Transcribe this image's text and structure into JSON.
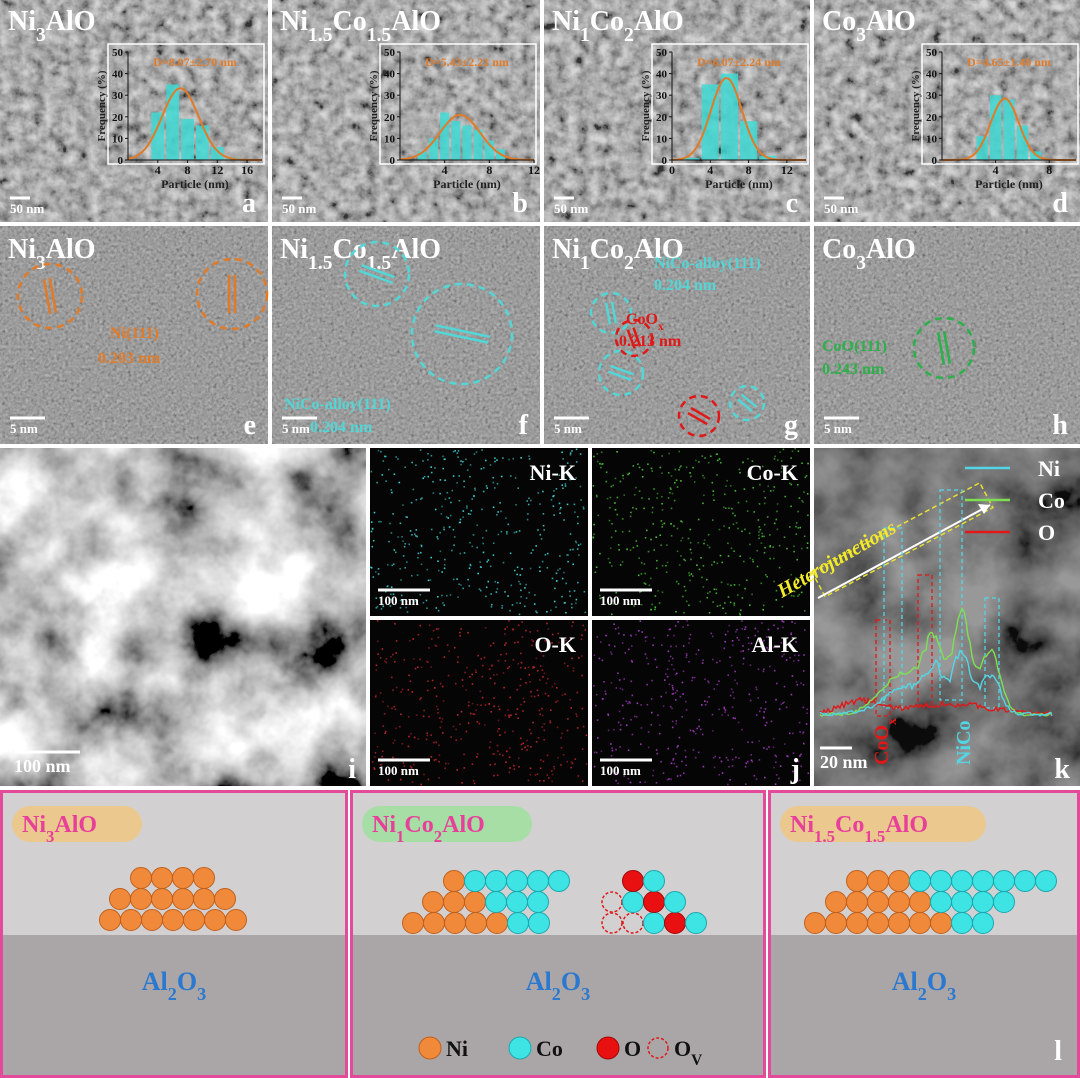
{
  "histograms": [
    {
      "title": "Ni3AlO",
      "fit": "D=8.07±2.70 nm",
      "y_label": "Frequency (%)",
      "x_label": "Particle (nm)",
      "bins": [
        3,
        5,
        7,
        9,
        11,
        13,
        15
      ],
      "counts": [
        22,
        35,
        19,
        16,
        6,
        1
      ],
      "xlim": [
        0,
        18
      ],
      "xticks": [
        4,
        8,
        12,
        16
      ],
      "ylim": [
        0,
        50
      ],
      "yticks": [
        0,
        10,
        20,
        30,
        40,
        50
      ],
      "scale_bar": "50 nm",
      "letter": "a"
    },
    {
      "title": "Ni1.5Co1.5AlO",
      "fit": "D=5.43±2.21 nm",
      "y_label": "Frequency (%)",
      "x_label": "Particle (nm)",
      "bins": [
        1.5,
        2.5,
        3.5,
        4.5,
        5.5,
        6.5,
        7.5,
        8.5,
        9.5
      ],
      "counts": [
        4,
        10,
        22,
        18,
        16,
        14,
        9,
        5
      ],
      "xlim": [
        0,
        12
      ],
      "xticks": [
        4,
        8,
        12
      ],
      "ylim": [
        0,
        50
      ],
      "yticks": [
        0,
        10,
        20,
        30,
        40,
        50
      ],
      "scale_bar": "50 nm",
      "letter": "b"
    },
    {
      "title": "Ni1Co2AlO",
      "fit": "D=6.07±2.24 nm",
      "y_label": "Frequency (%)",
      "x_label": "Particle (nm)",
      "bins": [
        1,
        3,
        5,
        7,
        9,
        11
      ],
      "counts": [
        1,
        35,
        40,
        18,
        2
      ],
      "xlim": [
        0,
        14
      ],
      "xticks": [
        0,
        4,
        8,
        12
      ],
      "ylim": [
        0,
        50
      ],
      "yticks": [
        0,
        10,
        20,
        30,
        40,
        50
      ],
      "scale_bar": "50 nm",
      "letter": "c"
    },
    {
      "title": "Co3AlO",
      "fit": "D=4.65±1.40 nm",
      "y_label": "Frequency (%)",
      "x_label": "Particle (nm)",
      "bins": [
        2.5,
        3.5,
        4.5,
        5.5,
        6.5,
        7.5
      ],
      "counts": [
        11,
        30,
        28,
        16,
        4
      ],
      "xlim": [
        0,
        10
      ],
      "xticks": [
        4,
        8
      ],
      "ylim": [
        0,
        50
      ],
      "yticks": [
        0,
        10,
        20,
        30,
        40,
        50
      ],
      "scale_bar": "50 nm",
      "letter": "d"
    }
  ],
  "hrtem": [
    {
      "title": "Ni3AlO",
      "annotations": [
        {
          "text": "Ni(111)",
          "color": "#e07b2a"
        },
        {
          "text": "0.203 nm",
          "color": "#e07b2a"
        }
      ],
      "scale_bar": "5 nm",
      "letter": "e"
    },
    {
      "title": "Ni1.5Co1.5AlO",
      "annotations": [
        {
          "text": "NiCo-alloy(111)",
          "color": "#52d6d6"
        },
        {
          "text": "0.204 nm",
          "color": "#52d6d6"
        }
      ],
      "scale_bar": "5 nm",
      "letter": "f"
    },
    {
      "title": "Ni1Co2AlO",
      "annotations": [
        {
          "text": "NiCo-alloy(111)",
          "color": "#52d6d6"
        },
        {
          "text": "0.204 nm",
          "color": "#52d6d6"
        },
        {
          "text": "CoOx",
          "color": "#e01818"
        },
        {
          "text": "0.213 nm",
          "color": "#e01818"
        }
      ],
      "scale_bar": "5 nm",
      "letter": "g"
    },
    {
      "title": "Co3AlO",
      "annotations": [
        {
          "text": "CoO(111)",
          "color": "#2bb04a"
        },
        {
          "text": "0.243 nm",
          "color": "#2bb04a"
        }
      ],
      "scale_bar": "5 nm",
      "letter": "h"
    }
  ],
  "haadf": {
    "scale_bar": "100 nm",
    "letter": "i"
  },
  "mapping": {
    "maps": [
      {
        "label": "Ni-K",
        "color": "#3fd0d0",
        "scale_bar": "100 nm"
      },
      {
        "label": "Co-K",
        "color": "#4cc23a",
        "scale_bar": "100 nm"
      },
      {
        "label": "O-K",
        "color": "#c0282c",
        "scale_bar": "100 nm"
      },
      {
        "label": "Al-K",
        "color": "#a43cc0",
        "scale_bar": "100 nm"
      }
    ],
    "letter": "j"
  },
  "line_scan": {
    "legend": [
      {
        "label": "Ni",
        "color": "#52d6e6"
      },
      {
        "label": "Co",
        "color": "#7ee050"
      },
      {
        "label": "O",
        "color": "#e01818"
      }
    ],
    "annotation": "Heterojunctions",
    "markers": [
      "CoOx",
      "NiCo"
    ],
    "scale_bar": "20 nm",
    "letter": "k"
  },
  "schematic": {
    "boxes": [
      {
        "label": "Ni3AlO",
        "support": "Al2O3"
      },
      {
        "label": "Ni1Co2AlO",
        "support": "Al2O3"
      },
      {
        "label": "Ni1.5Co1.5AlO",
        "support": "Al2O3"
      }
    ],
    "legend": [
      {
        "base": "Ni"
      },
      {
        "base": "Co"
      },
      {
        "base": "O"
      },
      {
        "base": "O",
        "subscript": "V"
      }
    ],
    "letter": "l"
  }
}
